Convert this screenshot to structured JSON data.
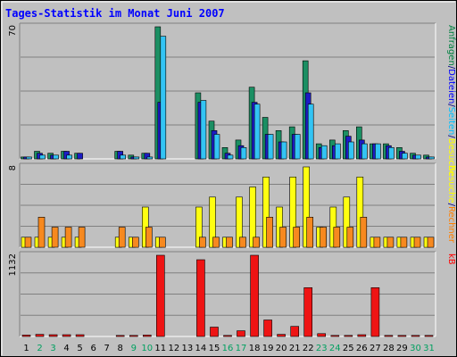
{
  "chart_data": {
    "type": "bar",
    "title": "Tages-Statistik im Monat Juni 2007",
    "categories": [
      "1",
      "2",
      "3",
      "4",
      "5",
      "6",
      "7",
      "8",
      "9",
      "10",
      "11",
      "12",
      "13",
      "14",
      "15",
      "16",
      "17",
      "18",
      "19",
      "20",
      "21",
      "22",
      "23",
      "24",
      "25",
      "26",
      "27",
      "28",
      "29",
      "30",
      "31"
    ],
    "weekend_days": [
      "2",
      "3",
      "9",
      "10",
      "16",
      "17",
      "23",
      "24",
      "30",
      "31"
    ],
    "panels": [
      {
        "name": "hits",
        "ymax_label": "70",
        "ylim": [
          0,
          70
        ],
        "legend": [
          {
            "label": "Anfragen",
            "color": "#008040"
          },
          {
            "label": "/",
            "color": "#000080"
          },
          {
            "label": "Dateien",
            "color": "#0000ff"
          },
          {
            "label": "/",
            "color": "#000080"
          },
          {
            "label": "Seiten",
            "color": "#00c0ff"
          },
          {
            "label": "/",
            "color": "#000080"
          },
          {
            "label": "Besuche",
            "color": "#ffff00"
          }
        ],
        "series": [
          {
            "name": "Anfragen",
            "color": "#1b8f63",
            "values": [
              1,
              4,
              3,
              4,
              3,
              0,
              0,
              4,
              2,
              3,
              70,
              0,
              0,
              35,
              20,
              6,
              10,
              38,
              22,
              15,
              17,
              52,
              8,
              10,
              15,
              17,
              8,
              8,
              6,
              3,
              2
            ]
          },
          {
            "name": "Dateien",
            "color": "#1c1cc4",
            "values": [
              1,
              3,
              2,
              4,
              3,
              0,
              0,
              4,
              1,
              3,
              30,
              0,
              0,
              30,
              15,
              3,
              7,
              30,
              13,
              9,
              13,
              35,
              6,
              7,
              12,
              10,
              8,
              7,
              4,
              2,
              1
            ]
          },
          {
            "name": "Seiten",
            "color": "#33c4f4",
            "values": [
              1,
              2,
              2,
              2,
              0,
              0,
              0,
              2,
              1,
              1,
              65,
              0,
              0,
              31,
              13,
              2,
              6,
              29,
              13,
              9,
              13,
              29,
              7,
              8,
              9,
              8,
              8,
              6,
              3,
              2,
              1
            ]
          }
        ]
      },
      {
        "name": "visits",
        "ymax_label": "8",
        "ylim": [
          0,
          8
        ],
        "legend": [
          {
            "label": "Besuche",
            "color": "#ffff00"
          },
          {
            "label": "/",
            "color": "#000080"
          },
          {
            "label": "Rechner",
            "color": "#ff8000"
          }
        ],
        "series": [
          {
            "name": "Besuche",
            "color": "#ffff11",
            "values": [
              1,
              1,
              1,
              1,
              1,
              0,
              0,
              1,
              1,
              4,
              1,
              0,
              0,
              4,
              5,
              1,
              5,
              6,
              7,
              4,
              7,
              8,
              2,
              4,
              5,
              7,
              1,
              1,
              1,
              1,
              1
            ]
          },
          {
            "name": "Rechner",
            "color": "#f7891f",
            "values": [
              1,
              3,
              2,
              2,
              2,
              0,
              0,
              2,
              1,
              2,
              1,
              0,
              0,
              1,
              1,
              1,
              1,
              1,
              3,
              2,
              2,
              3,
              2,
              2,
              2,
              3,
              1,
              1,
              1,
              1,
              1
            ]
          }
        ]
      },
      {
        "name": "traffic",
        "ymax_label": "1132",
        "ylim": [
          0,
          1132
        ],
        "legend": [
          {
            "label": "kB",
            "color": "#ff0000"
          }
        ],
        "series": [
          {
            "name": "kB",
            "color": "#ee1414",
            "values": [
              20,
              30,
              25,
              25,
              25,
              0,
              0,
              15,
              15,
              20,
              1132,
              0,
              0,
              1070,
              130,
              15,
              80,
              1132,
              230,
              30,
              140,
              680,
              40,
              15,
              15,
              25,
              680,
              15,
              15,
              15,
              15
            ]
          }
        ]
      }
    ],
    "grid": true,
    "legend_position": "right-vertical"
  }
}
